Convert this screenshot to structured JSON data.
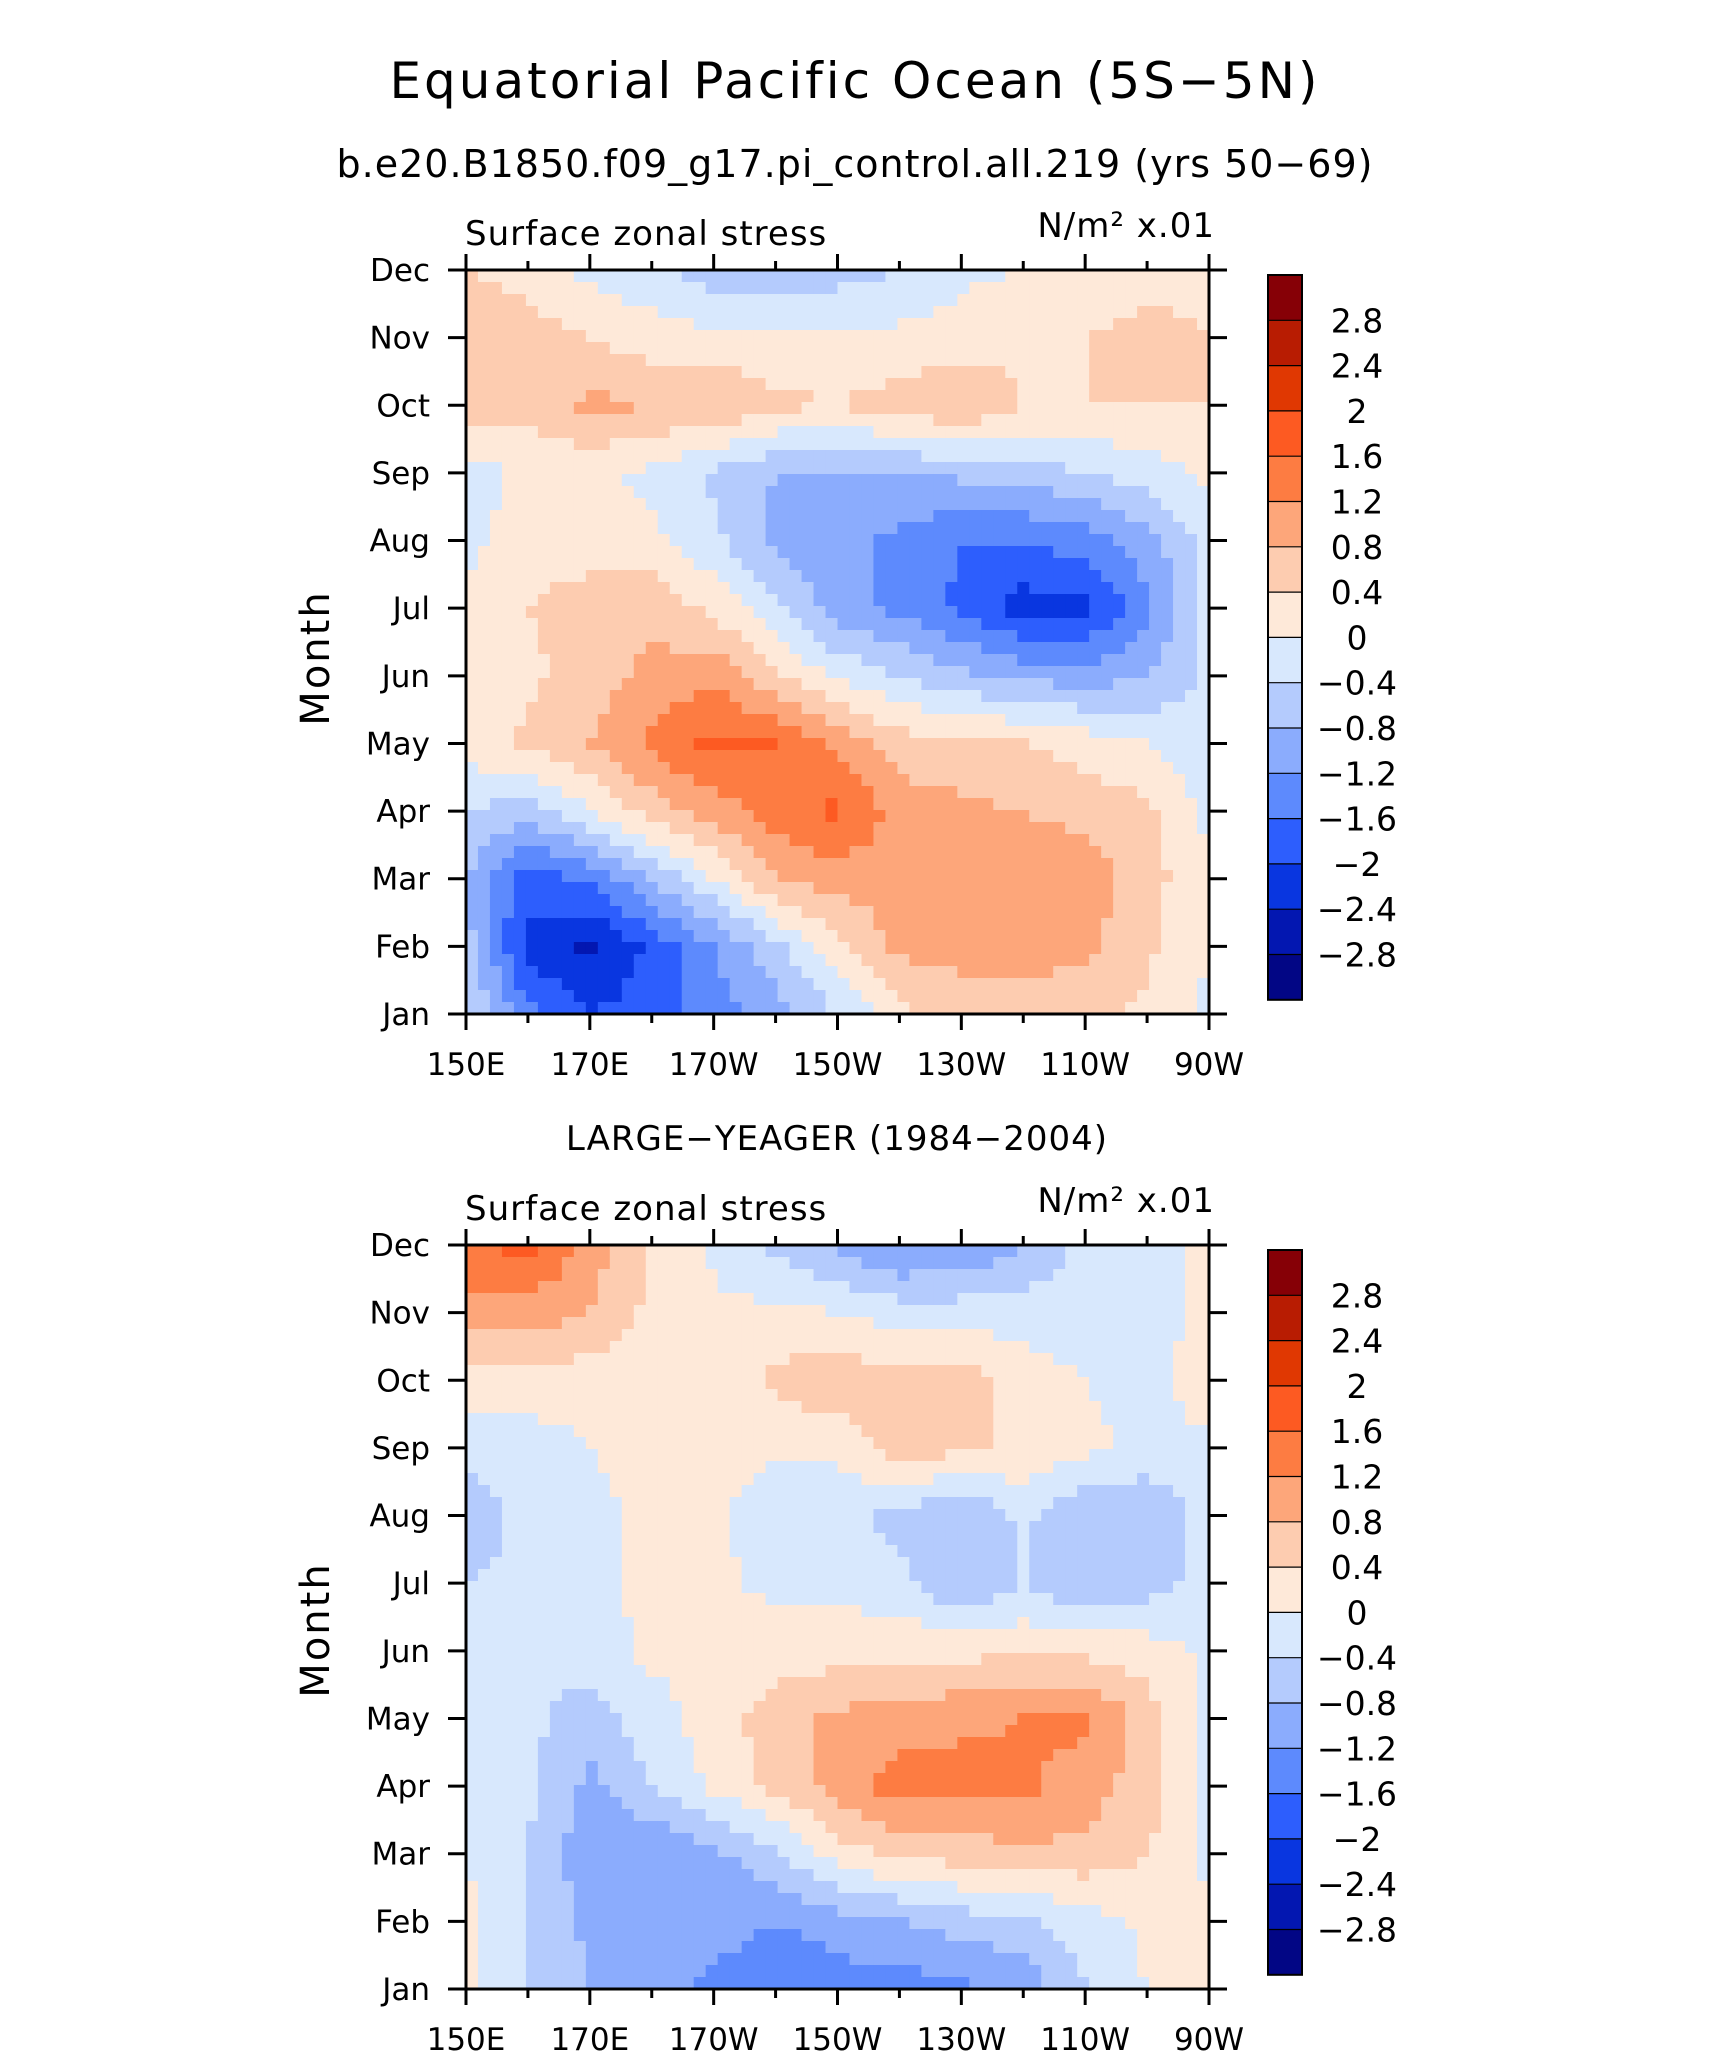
{
  "title": "Equatorial Pacific Ocean (5S−5N)",
  "subtitle": "b.e20.B1850.f09_g17.pi_control.all.219 (yrs 50−69)",
  "colorbar": {
    "levels": [
      "2.8",
      "2.4",
      "2",
      "1.6",
      "1.2",
      "0.8",
      "0.4",
      "0",
      "−0.4",
      "−0.8",
      "−1.2",
      "−1.6",
      "−2",
      "−2.4",
      "−2.8"
    ],
    "colors": [
      "#860006",
      "#b81c02",
      "#e03802",
      "#fd5a22",
      "#fd7c42",
      "#fda67a",
      "#fdccb0",
      "#fee9d9",
      "#d8e8fd",
      "#b4cbfd",
      "#8bacfd",
      "#5d8afd",
      "#2d5efd",
      "#0936e0",
      "#0317b1",
      "#020685"
    ]
  },
  "chart_data": [
    {
      "type": "heatmap",
      "title": "",
      "left_label": "Surface zonal stress",
      "units": "N/m² x.01",
      "xlabel": "",
      "ylabel": "Month",
      "x_ticks": [
        "150E",
        "170E",
        "170W",
        "150W",
        "130W",
        "110W",
        "90W"
      ],
      "y_ticks": [
        "Jan",
        "Feb",
        "Mar",
        "Apr",
        "May",
        "Jun",
        "Jul",
        "Aug",
        "Sep",
        "Oct",
        "Nov",
        "Dec"
      ],
      "x_lon": [
        150,
        160,
        170,
        180,
        190,
        200,
        210,
        220,
        230,
        240,
        250,
        260,
        270
      ],
      "z": [
        [
          -0.3,
          -1.5,
          -2.0,
          -1.8,
          -1.4,
          -1.0,
          -0.4,
          0.3,
          0.5,
          0.6,
          0.5,
          0.3,
          -0.1
        ],
        [
          -0.6,
          -2.2,
          -2.5,
          -1.9,
          -1.2,
          -0.5,
          0.3,
          0.9,
          1.0,
          1.0,
          0.9,
          0.5,
          0.0
        ],
        [
          -0.8,
          -1.8,
          -1.5,
          -0.8,
          0.0,
          0.8,
          1.0,
          1.0,
          0.9,
          1.0,
          1.0,
          0.6,
          0.0
        ],
        [
          -0.4,
          -0.6,
          0.0,
          0.6,
          1.0,
          1.4,
          1.7,
          1.0,
          0.9,
          0.8,
          0.7,
          0.5,
          -0.1
        ],
        [
          0.2,
          0.5,
          0.8,
          1.3,
          1.7,
          1.6,
          1.1,
          0.6,
          0.5,
          0.4,
          0.2,
          0.0,
          -0.3
        ],
        [
          0.1,
          0.3,
          0.6,
          0.9,
          1.1,
          0.5,
          -0.1,
          -0.4,
          -0.7,
          -0.9,
          -1.0,
          -0.8,
          -0.3
        ],
        [
          0.1,
          0.4,
          0.6,
          0.7,
          0.3,
          -0.3,
          -1.0,
          -1.3,
          -1.7,
          -2.2,
          -2.1,
          -1.3,
          -0.3
        ],
        [
          -0.1,
          0.2,
          0.2,
          0.1,
          -0.3,
          -0.9,
          -1.1,
          -1.3,
          -1.6,
          -1.6,
          -1.4,
          -1.0,
          -0.2
        ],
        [
          -0.2,
          0.1,
          0.1,
          -0.1,
          -0.5,
          -0.8,
          -0.8,
          -0.8,
          -0.7,
          -0.6,
          -0.4,
          -0.2,
          0.1
        ],
        [
          0.6,
          0.5,
          0.9,
          0.8,
          0.8,
          0.5,
          0.4,
          0.6,
          0.8,
          0.4,
          0.4,
          0.4,
          0.4
        ],
        [
          0.8,
          0.6,
          0.4,
          0.2,
          0.1,
          0.1,
          0.1,
          0.1,
          0.2,
          0.3,
          0.4,
          0.5,
          0.4
        ],
        [
          0.4,
          0.2,
          -0.1,
          -0.3,
          -0.6,
          -0.8,
          -0.6,
          -0.4,
          -0.1,
          0.0,
          0.1,
          0.3,
          0.3
        ]
      ]
    },
    {
      "type": "heatmap",
      "title": "LARGE−YEAGER (1984−2004)",
      "left_label": "Surface zonal stress",
      "units": "N/m² x.01",
      "xlabel": "",
      "ylabel": "Month",
      "x_ticks": [
        "150E",
        "170E",
        "170W",
        "150W",
        "130W",
        "110W",
        "90W"
      ],
      "y_ticks": [
        "Jan",
        "Feb",
        "Mar",
        "Apr",
        "May",
        "Jun",
        "Jul",
        "Aug",
        "Sep",
        "Oct",
        "Nov",
        "Dec"
      ],
      "x_lon": [
        150,
        160,
        170,
        180,
        190,
        200,
        210,
        220,
        230,
        240,
        250,
        260,
        270
      ],
      "z": [
        [
          0.1,
          -0.4,
          -0.8,
          -1.0,
          -1.3,
          -1.6,
          -1.4,
          -1.4,
          -1.3,
          -1.1,
          -0.4,
          0.0,
          0.1
        ],
        [
          0.1,
          -0.4,
          -0.9,
          -1.1,
          -1.0,
          -1.2,
          -1.0,
          -0.8,
          -0.6,
          -0.5,
          -0.2,
          0.1,
          0.1
        ],
        [
          0.0,
          -0.4,
          -1.1,
          -1.2,
          -0.9,
          -0.5,
          0.2,
          0.5,
          0.6,
          0.7,
          0.7,
          0.4,
          -0.1
        ],
        [
          0.0,
          -0.3,
          -0.9,
          -0.4,
          0.1,
          0.5,
          1.0,
          1.4,
          1.4,
          1.3,
          1.0,
          0.6,
          -0.1
        ],
        [
          0.0,
          -0.3,
          -0.6,
          -0.2,
          0.2,
          0.6,
          0.9,
          1.0,
          1.1,
          1.2,
          1.3,
          0.6,
          -0.1
        ],
        [
          -0.3,
          -0.3,
          -0.2,
          0.1,
          0.1,
          0.2,
          0.2,
          0.3,
          0.3,
          0.3,
          0.3,
          0.2,
          -0.1
        ],
        [
          -0.4,
          -0.3,
          -0.1,
          0.1,
          0.1,
          -0.1,
          -0.1,
          -0.3,
          -0.8,
          -0.4,
          -0.8,
          -0.6,
          -0.2
        ],
        [
          -0.6,
          -0.3,
          -0.1,
          0.1,
          0.1,
          -0.3,
          -0.3,
          -0.5,
          -0.8,
          -0.3,
          -0.8,
          -0.8,
          -0.2
        ],
        [
          -0.3,
          -0.2,
          0.0,
          0.1,
          0.2,
          0.1,
          0.1,
          0.6,
          0.5,
          0.3,
          0.1,
          -0.1,
          -0.1
        ],
        [
          0.2,
          0.2,
          0.2,
          0.1,
          0.1,
          0.5,
          0.7,
          0.5,
          0.6,
          0.2,
          0.0,
          -0.2,
          0.3
        ],
        [
          1.1,
          1.0,
          0.8,
          0.3,
          0.1,
          0.1,
          0.0,
          -0.2,
          -0.2,
          -0.2,
          -0.2,
          -0.2,
          0.1
        ],
        [
          1.5,
          1.8,
          1.0,
          0.4,
          -0.1,
          -0.5,
          -0.9,
          -1.3,
          -1.2,
          -0.8,
          -0.3,
          -0.2,
          0.1
        ]
      ]
    }
  ]
}
